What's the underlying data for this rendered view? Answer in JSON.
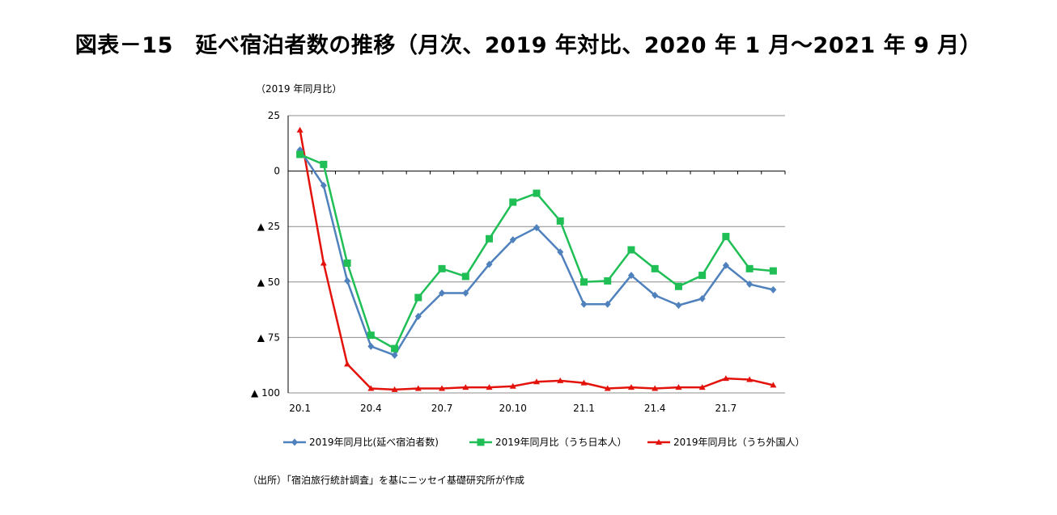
{
  "title": "図表－15　延べ宿泊者数の推移（月次、2019 年対比、2020 年 1 月～2021 年 9 月）",
  "unit_label": "（2019 年同月比）",
  "source": "（出所）「宿泊旅行統計調査」を基にニッセイ基礎研究所が作成",
  "chart_data": {
    "type": "line",
    "x": [
      "20.1",
      "20.2",
      "20.3",
      "20.4",
      "20.5",
      "20.6",
      "20.7",
      "20.8",
      "20.9",
      "20.10",
      "20.11",
      "20.12",
      "21.1",
      "21.2",
      "21.3",
      "21.4",
      "21.5",
      "21.6",
      "21.7",
      "21.8",
      "21.9"
    ],
    "x_tick_labels": [
      "20.1",
      "",
      "",
      "20.4",
      "",
      "",
      "20.7",
      "",
      "",
      "20.10",
      "",
      "",
      "21.1",
      "",
      "",
      "21.4",
      "",
      "",
      "21.7",
      "",
      ""
    ],
    "ylim": [
      -100,
      25
    ],
    "y_ticks": [
      25,
      0,
      -25,
      -50,
      -75,
      -100
    ],
    "y_tick_labels": [
      "25",
      "0",
      "▲ 25",
      "▲ 50",
      "▲ 75",
      "▲ 100"
    ],
    "grid": true,
    "legend_position": "bottom",
    "series": [
      {
        "name": "2019年同月比(延べ宿泊者数)",
        "color": "#4f81bd",
        "marker": "diamond",
        "values": [
          9.5,
          -6.5,
          -49.5,
          -79,
          -83,
          -65.5,
          -55,
          -55,
          -42,
          -31,
          -25.5,
          -36.5,
          -60,
          -60,
          -47,
          -56,
          -60.5,
          -57.5,
          -42.5,
          -51,
          -53.5
        ]
      },
      {
        "name": "2019年同月比（うち日本人）",
        "color": "#1fbf56",
        "marker": "square",
        "values": [
          7.5,
          3,
          -41.5,
          -74,
          -80,
          -57,
          -44,
          -47.5,
          -30.5,
          -14,
          -10,
          -22.5,
          -50,
          -49.5,
          -35.5,
          -44,
          -52,
          -47,
          -29.5,
          -44,
          -45
        ]
      },
      {
        "name": "2019年同月比（うち外国人）",
        "color": "#e3120b",
        "marker": "triangle",
        "values": [
          18.5,
          -41.5,
          -87,
          -98,
          -98.5,
          -98,
          -98,
          -97.5,
          -97.5,
          -97,
          -95,
          -94.5,
          -95.5,
          -98,
          -97.5,
          -98,
          -97.5,
          -97.5,
          -93.5,
          -94,
          -96.5
        ]
      }
    ]
  }
}
